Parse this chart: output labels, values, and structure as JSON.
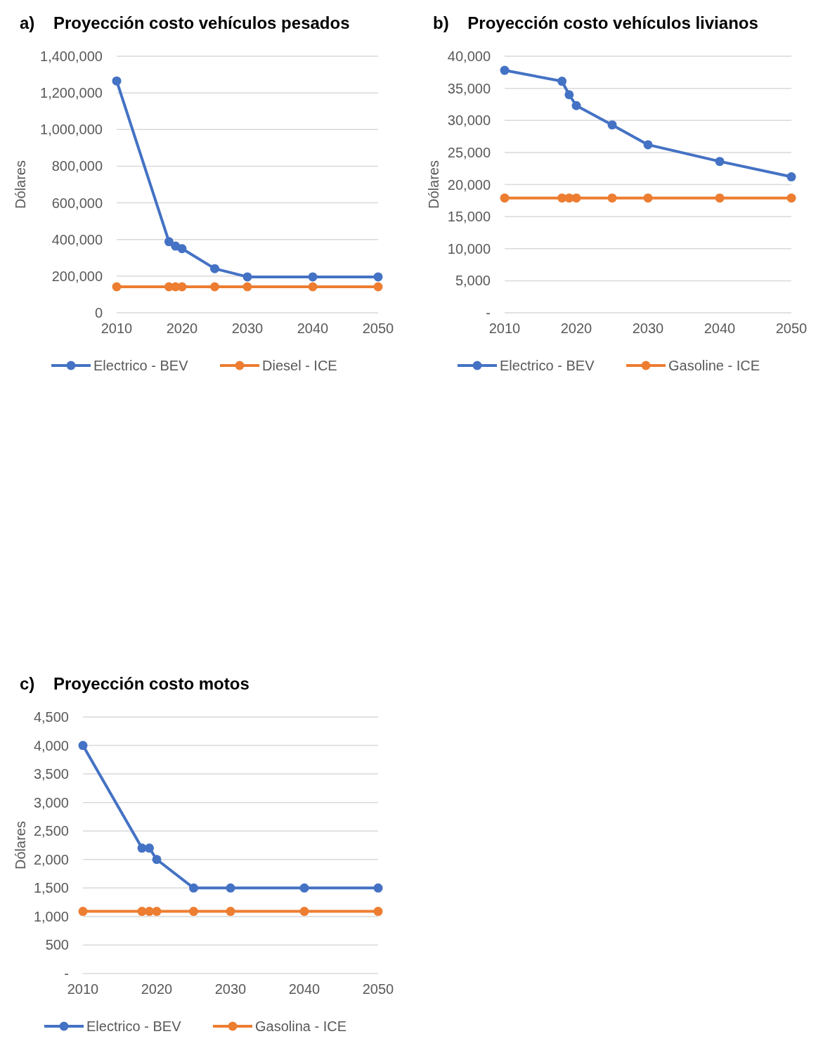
{
  "chart_data": [
    {
      "type": "line",
      "title": "a)    Proyección costo vehículos pesados",
      "ylabel": "Dólares",
      "x": [
        2010,
        2018,
        2019,
        2020,
        2025,
        2030,
        2040,
        2050
      ],
      "xlim": [
        2010,
        2050
      ],
      "xticks": [
        2010,
        2020,
        2030,
        2040,
        2050
      ],
      "ylim": [
        0,
        1400000
      ],
      "yticks": [
        {
          "value": 0,
          "label": "0"
        },
        {
          "value": 200000,
          "label": "200,000"
        },
        {
          "value": 400000,
          "label": "400,000"
        },
        {
          "value": 600000,
          "label": "600,000"
        },
        {
          "value": 800000,
          "label": "800,000"
        },
        {
          "value": 1000000,
          "label": "1,000,000"
        },
        {
          "value": 1200000,
          "label": "1,200,000"
        },
        {
          "value": 1400000,
          "label": "1,400,000"
        }
      ],
      "grid": "y",
      "legend": "bottom",
      "marker": "circle",
      "line_style": "solid",
      "series": [
        {
          "name": "Electrico - BEV",
          "color": "#4472c4",
          "values": [
            1265000,
            388000,
            364000,
            350000,
            241000,
            196000,
            196000,
            196000
          ]
        },
        {
          "name": "Diesel - ICE",
          "color": "#ed7d31",
          "values": [
            142000,
            142000,
            142000,
            142000,
            142000,
            142000,
            142000,
            142000
          ]
        }
      ]
    },
    {
      "type": "line",
      "title": "b)    Proyección costo vehículos livianos",
      "ylabel": "Dólares",
      "x": [
        2010,
        2018,
        2019,
        2020,
        2025,
        2030,
        2040,
        2050
      ],
      "xlim": [
        2010,
        2050
      ],
      "xticks": [
        2010,
        2020,
        2030,
        2040,
        2050
      ],
      "ylim": [
        0,
        40000
      ],
      "yticks": [
        {
          "value": 0,
          "label": "-"
        },
        {
          "value": 5000,
          "label": "5,000"
        },
        {
          "value": 10000,
          "label": "10,000"
        },
        {
          "value": 15000,
          "label": "15,000"
        },
        {
          "value": 20000,
          "label": "20,000"
        },
        {
          "value": 25000,
          "label": "25,000"
        },
        {
          "value": 30000,
          "label": "30,000"
        },
        {
          "value": 35000,
          "label": "35,000"
        },
        {
          "value": 40000,
          "label": "40,000"
        }
      ],
      "grid": "y",
      "legend": "bottom",
      "marker": "circle",
      "line_style": "solid",
      "series": [
        {
          "name": "Electrico - BEV",
          "color": "#4472c4",
          "values": [
            37800,
            36100,
            34000,
            32300,
            29300,
            26200,
            23600,
            21200
          ]
        },
        {
          "name": "Gasoline - ICE",
          "color": "#ed7d31",
          "values": [
            17900,
            17900,
            17900,
            17900,
            17900,
            17900,
            17900,
            17900
          ]
        }
      ]
    },
    {
      "type": "line",
      "title": "c)    Proyección costo motos",
      "ylabel": "Dólares",
      "x": [
        2010,
        2018,
        2019,
        2020,
        2025,
        2030,
        2040,
        2050
      ],
      "xlim": [
        2010,
        2050
      ],
      "xticks": [
        2010,
        2020,
        2030,
        2040,
        2050
      ],
      "ylim": [
        0,
        4500
      ],
      "yticks": [
        {
          "value": 0,
          "label": "-"
        },
        {
          "value": 500,
          "label": "500"
        },
        {
          "value": 1000,
          "label": "1,000"
        },
        {
          "value": 1500,
          "label": "1,500"
        },
        {
          "value": 2000,
          "label": "2,000"
        },
        {
          "value": 2500,
          "label": "2,500"
        },
        {
          "value": 3000,
          "label": "3,000"
        },
        {
          "value": 3500,
          "label": "3,500"
        },
        {
          "value": 4000,
          "label": "4,000"
        },
        {
          "value": 4500,
          "label": "4,500"
        }
      ],
      "grid": "y",
      "legend": "bottom",
      "marker": "circle",
      "line_style": "solid",
      "series": [
        {
          "name": "Electrico - BEV",
          "color": "#4472c4",
          "values": [
            4000,
            2200,
            2200,
            2000,
            1500,
            1500,
            1500,
            1500
          ]
        },
        {
          "name": "Gasolina - ICE",
          "color": "#ed7d31",
          "values": [
            1090,
            1090,
            1090,
            1090,
            1090,
            1090,
            1090,
            1090
          ]
        }
      ]
    }
  ]
}
